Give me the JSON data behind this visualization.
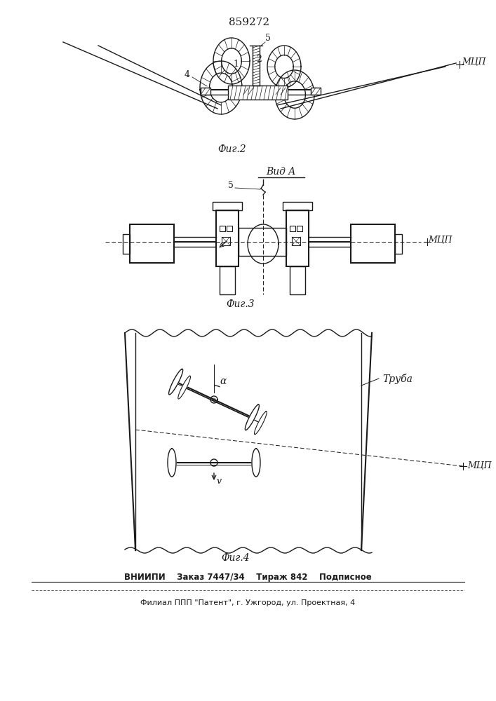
{
  "patent_number": "859272",
  "fig2_label": "Фиг.2",
  "fig3_label": "Фиг.3",
  "fig4_label": "Фиг.4",
  "vid_a_label": "Вид A",
  "mcp_label": "МЦП",
  "truba_label": "Труба",
  "footer1": "ВНИИПИ    Заказ 7447/34    Тираж 842    Подписное",
  "footer2": "Филиал ППП \"Патент\", г. Ужгород, ул. Проектная, 4",
  "bg_color": "#ffffff",
  "line_color": "#1a1a1a",
  "label_1": "1",
  "label_2": "2",
  "label_4": "4",
  "label_5": "5",
  "alpha_label": "α",
  "v_label": "v"
}
